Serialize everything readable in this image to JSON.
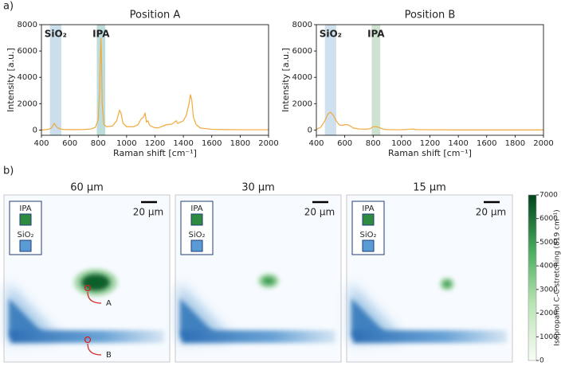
{
  "panels": {
    "a": "a)",
    "b": "b)"
  },
  "chart_data": [
    {
      "type": "line",
      "title": "Position A",
      "xlabel": "Raman shift [cm⁻¹]",
      "ylabel": "Intensity [a.u.]",
      "xlim": [
        400,
        2000
      ],
      "xticks": [
        400,
        600,
        800,
        1000,
        1200,
        1400,
        1600,
        1800,
        2000
      ],
      "ylim": [
        -400,
        8000
      ],
      "yticks": [
        0,
        2000,
        4000,
        6000,
        8000
      ],
      "spans": [
        {
          "label": "SiO₂",
          "xrange": [
            460,
            540
          ],
          "color": "#b9d3e6"
        },
        {
          "label": "IPA",
          "xrange": [
            790,
            850
          ],
          "color": "#a9d0d0"
        }
      ],
      "x": [
        400,
        450,
        470,
        490,
        510,
        530,
        560,
        600,
        650,
        700,
        750,
        780,
        800,
        810,
        815,
        819,
        823,
        828,
        840,
        860,
        900,
        930,
        950,
        960,
        975,
        1000,
        1050,
        1080,
        1100,
        1120,
        1130,
        1140,
        1150,
        1160,
        1170,
        1190,
        1220,
        1280,
        1320,
        1350,
        1360,
        1380,
        1400,
        1420,
        1440,
        1450,
        1460,
        1470,
        1490,
        1520,
        1600,
        1700,
        1800,
        1900,
        2000
      ],
      "series": [
        {
          "color": "#f2a93b",
          "values": [
            0,
            50,
            150,
            500,
            200,
            80,
            40,
            30,
            30,
            40,
            80,
            200,
            800,
            3000,
            5500,
            7000,
            5500,
            2000,
            400,
            250,
            300,
            700,
            1500,
            1300,
            500,
            250,
            250,
            400,
            800,
            1000,
            1300,
            600,
            700,
            400,
            300,
            200,
            150,
            400,
            450,
            700,
            500,
            600,
            700,
            1100,
            2000,
            2700,
            2200,
            1000,
            400,
            150,
            50,
            30,
            20,
            20,
            20
          ]
        }
      ]
    },
    {
      "type": "line",
      "title": "Position B",
      "xlabel": "Raman shift [cm⁻¹]",
      "ylabel": "Intensity [a.u.]",
      "xlim": [
        400,
        2000
      ],
      "xticks": [
        400,
        600,
        800,
        1000,
        1200,
        1400,
        1600,
        1800,
        2000
      ],
      "ylim": [
        -400,
        8000
      ],
      "yticks": [
        0,
        2000,
        4000,
        6000,
        8000
      ],
      "spans": [
        {
          "label": "SiO₂",
          "xrange": [
            460,
            540
          ],
          "color": "#bfd6e8"
        },
        {
          "label": "IPA",
          "xrange": [
            790,
            850
          ],
          "color": "#bcd9c0"
        }
      ],
      "x": [
        400,
        430,
        460,
        480,
        500,
        520,
        540,
        560,
        580,
        600,
        620,
        640,
        660,
        700,
        750,
        780,
        800,
        820,
        840,
        860,
        880,
        900,
        950,
        1000,
        1050,
        1080,
        1100,
        1200,
        1400,
        1600,
        1800,
        2000
      ],
      "series": [
        {
          "color": "#f2a93b",
          "values": [
            50,
            200,
            700,
            1200,
            1350,
            1100,
            700,
            400,
            350,
            400,
            400,
            300,
            150,
            80,
            60,
            100,
            250,
            250,
            200,
            100,
            50,
            30,
            20,
            20,
            50,
            80,
            30,
            20,
            10,
            10,
            10,
            10
          ]
        }
      ]
    }
  ],
  "maps": [
    {
      "title": "60 µm",
      "scale_bar": "20 µm",
      "legend": [
        "IPA",
        "SiO₂"
      ],
      "markers": [
        "A",
        "B"
      ]
    },
    {
      "title": "30 µm",
      "scale_bar": "20 µm",
      "legend": [
        "IPA",
        "SiO₂"
      ]
    },
    {
      "title": "15 µm",
      "scale_bar": "20 µm",
      "legend": [
        "IPA",
        "SiO₂"
      ]
    }
  ],
  "colorbar": {
    "label": "Isopropanol C-C stretching (819 cm⁻¹)",
    "lim": [
      0,
      7000
    ],
    "ticks": [
      0,
      1000,
      2000,
      3000,
      4000,
      5000,
      6000,
      7000
    ]
  }
}
